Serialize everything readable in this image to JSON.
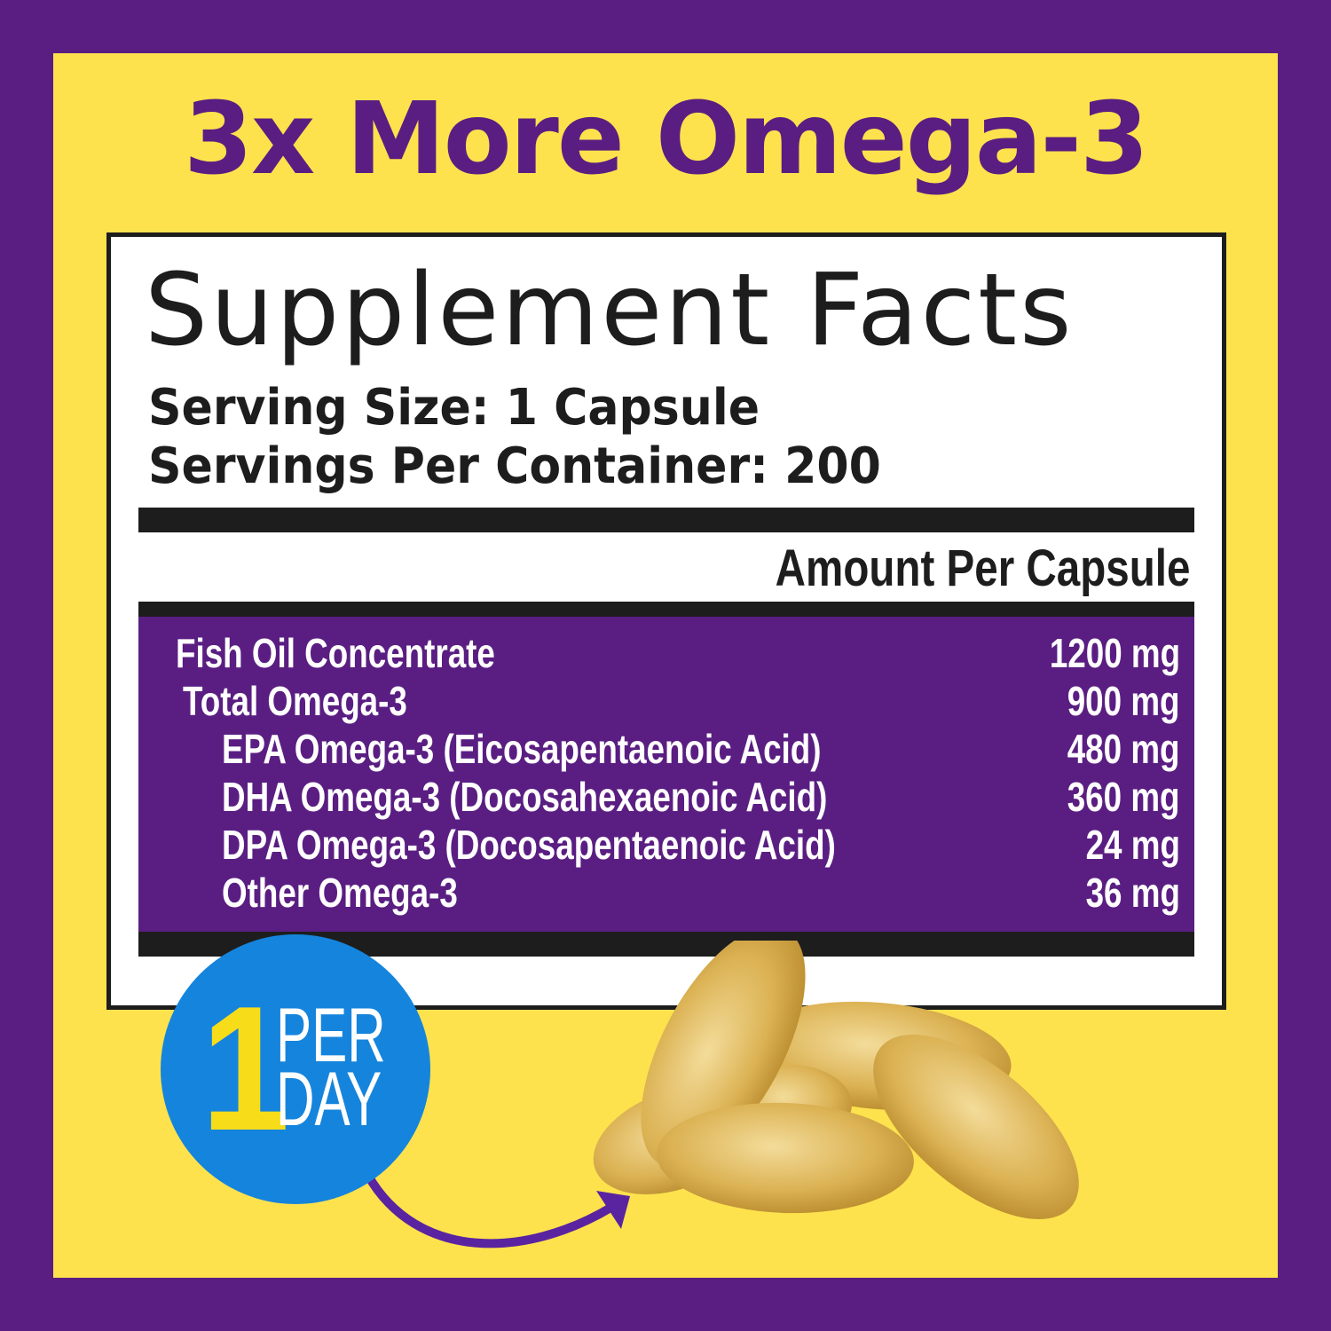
{
  "headline": "3x More Omega-3",
  "facts": {
    "title": "Supplement Facts",
    "serving_size": "Serving Size: 1 Capsule",
    "servings_per_container": "Servings Per Container: 200",
    "amount_header": "Amount Per Capsule",
    "rows": [
      {
        "name": "Fish Oil Concentrate",
        "value": "1200 mg"
      },
      {
        "name": "Total Omega-3",
        "value": "900 mg"
      },
      {
        "name": "EPA Omega-3 (Eicosapentaenoic Acid)",
        "value": "480 mg"
      },
      {
        "name": "DHA Omega-3 (Docosahexaenoic Acid)",
        "value": "360 mg"
      },
      {
        "name": "DPA Omega-3 (Docosapentaenoic Acid)",
        "value": "24 mg"
      },
      {
        "name": "Other Omega-3",
        "value": "36 mg"
      }
    ]
  },
  "badge": {
    "number": "1",
    "line1": "PER",
    "line2": "DAY"
  },
  "colors": {
    "purple": "#5a1e82",
    "yellow": "#fde24e",
    "blue": "#1584dc",
    "badge_number": "#f7dc1a"
  }
}
